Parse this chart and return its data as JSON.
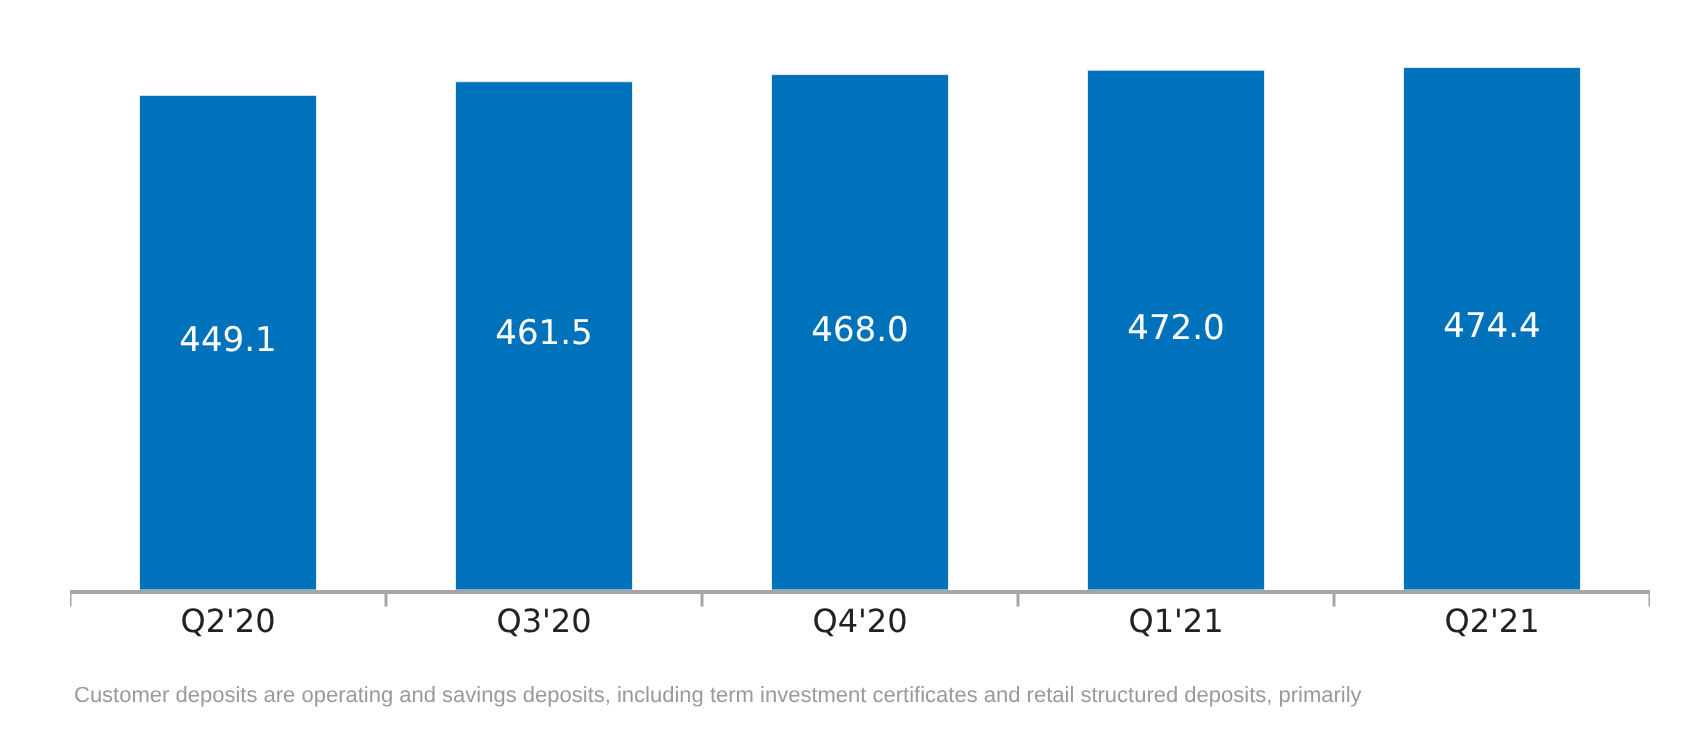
{
  "chart_data": {
    "type": "bar",
    "categories": [
      "Q2'20",
      "Q3'20",
      "Q4'20",
      "Q1'21",
      "Q2'21"
    ],
    "values": [
      449.1,
      461.5,
      468.0,
      472.0,
      474.4
    ],
    "value_labels": [
      "449.1",
      "461.5",
      "468.0",
      "472.0",
      "474.4"
    ],
    "color": "#0072bc",
    "tick_labels": "x",
    "legend": false,
    "annotations": [
      "Customer deposits are operating and savings deposits, including term investment certificates and retail structured deposits, primarily"
    ]
  }
}
